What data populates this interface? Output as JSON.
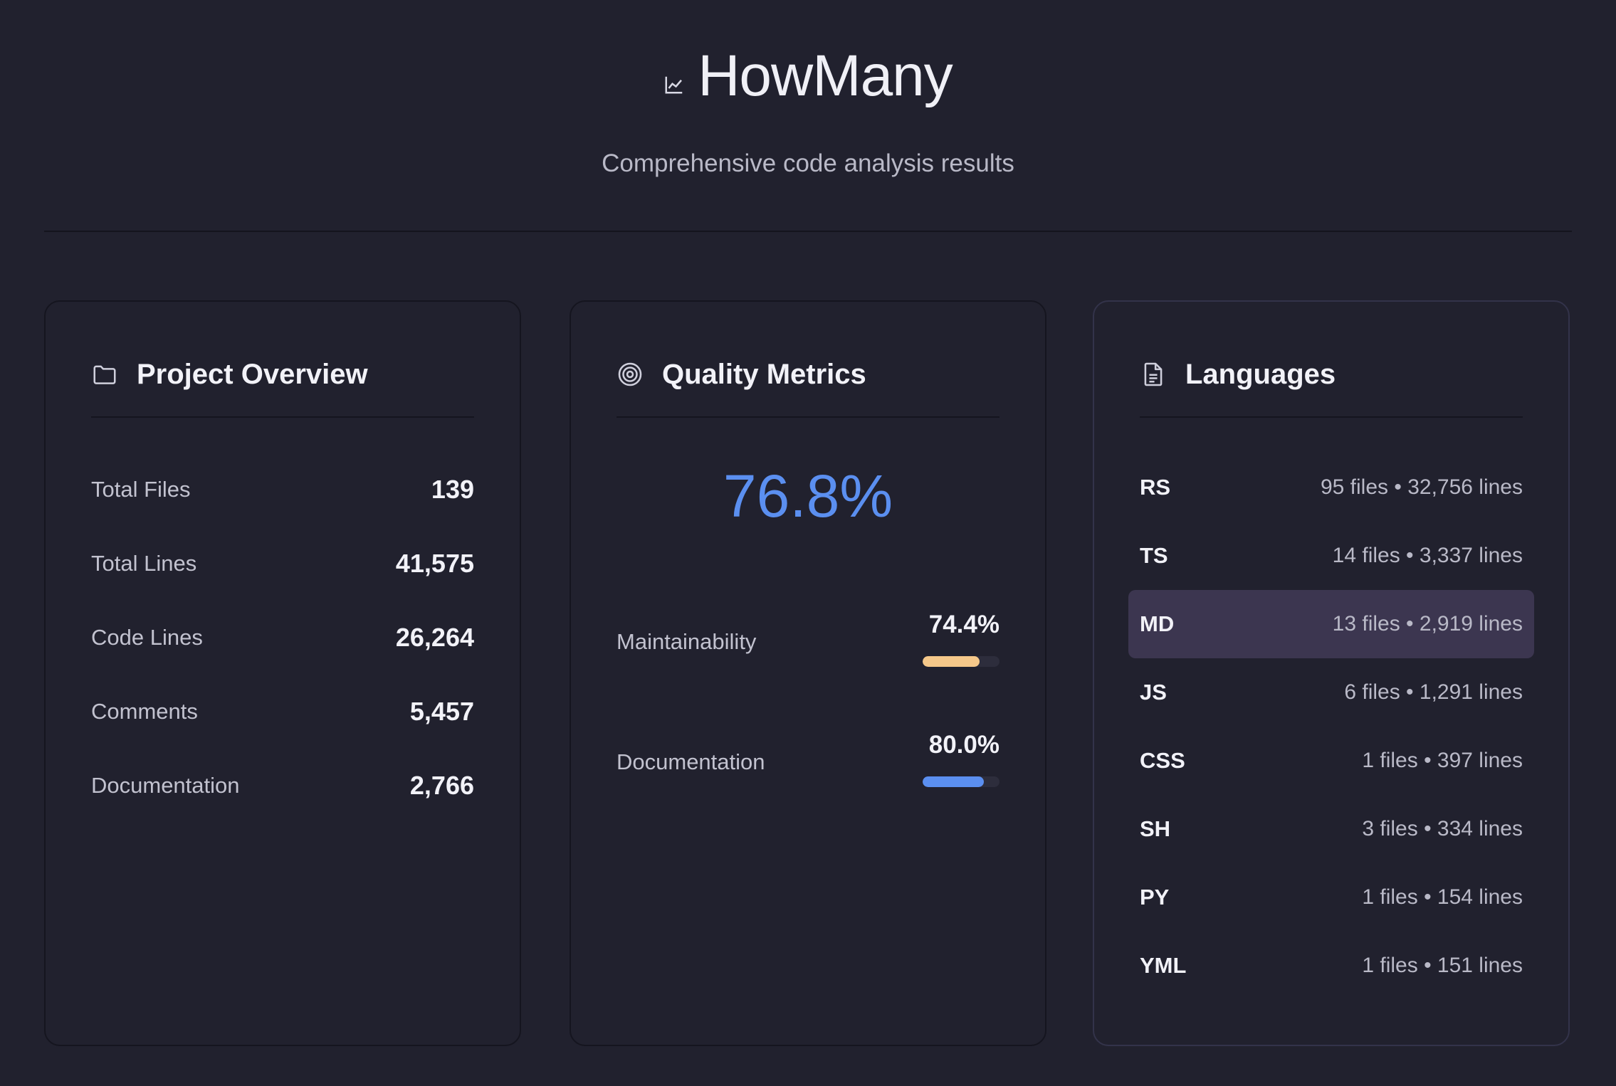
{
  "header": {
    "title": "HowMany",
    "subtitle": "Comprehensive code analysis results",
    "icon": "chart-line-icon"
  },
  "overview": {
    "title": "Project Overview",
    "icon": "folder-icon",
    "stats": [
      {
        "label": "Total Files",
        "value": "139"
      },
      {
        "label": "Total Lines",
        "value": "41,575"
      },
      {
        "label": "Code Lines",
        "value": "26,264"
      },
      {
        "label": "Comments",
        "value": "5,457"
      },
      {
        "label": "Documentation",
        "value": "2,766"
      }
    ]
  },
  "quality": {
    "title": "Quality Metrics",
    "icon": "target-icon",
    "score": "76.8%",
    "metrics": [
      {
        "label": "Maintainability",
        "value": "74.4%",
        "level": 74.4,
        "color": "#f5c88a"
      },
      {
        "label": "Documentation",
        "value": "80.0%",
        "level": 80.0,
        "color": "#5b8ff0"
      }
    ]
  },
  "languages": {
    "title": "Languages",
    "icon": "document-icon",
    "highlight_color": "#3c3650",
    "items": [
      {
        "name": "RS",
        "meta": "95 files • 32,756 lines"
      },
      {
        "name": "TS",
        "meta": "14 files • 3,337 lines"
      },
      {
        "name": "MD",
        "meta": "13 files • 2,919 lines",
        "highlighted": true
      },
      {
        "name": "JS",
        "meta": "6 files • 1,291 lines"
      },
      {
        "name": "CSS",
        "meta": "1 files • 397 lines"
      },
      {
        "name": "SH",
        "meta": "3 files • 334 lines"
      },
      {
        "name": "PY",
        "meta": "1 files • 154 lines"
      },
      {
        "name": "YML",
        "meta": "1 files • 151 lines"
      }
    ]
  }
}
